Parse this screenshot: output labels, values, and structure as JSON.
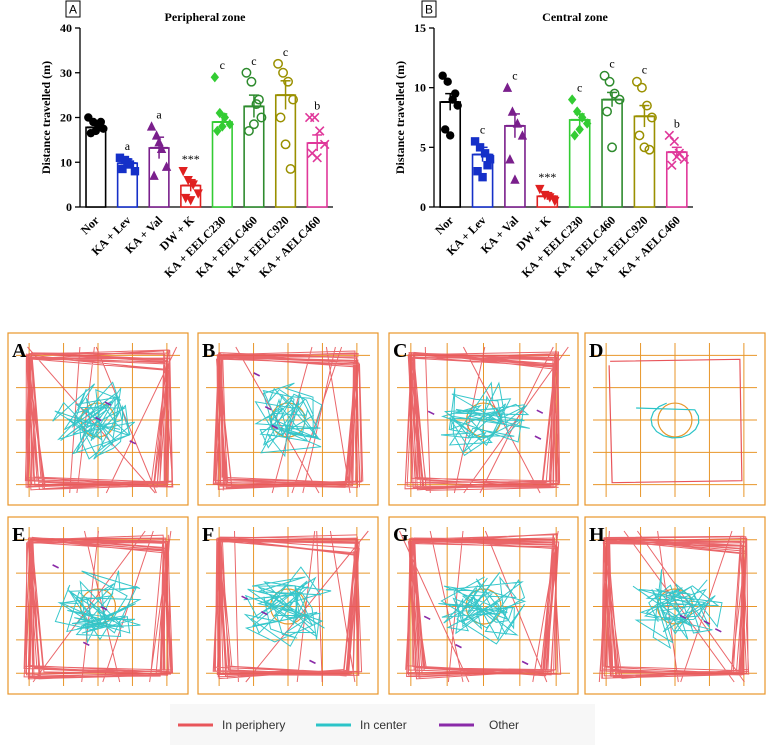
{
  "chart_data": [
    {
      "panel_label": "A",
      "type": "bar",
      "title": "Peripheral zone",
      "ylabel": "Distance travelled (m)",
      "xlabel": "",
      "ylim": [
        0,
        40
      ],
      "yticks": [
        "0",
        "10",
        "20",
        "30",
        "40"
      ],
      "categories": [
        "Nor",
        "KA + Lev",
        "KA + Val",
        "DW + K",
        "KA + EELC230",
        "KA + EELC460",
        "KA + EELC920",
        "KA + AELC460"
      ],
      "values": [
        17.8,
        9.8,
        13.2,
        4.8,
        19.0,
        22.5,
        25.0,
        14.3
      ],
      "errors": [
        1.0,
        0.9,
        2.4,
        1.3,
        1.8,
        2.5,
        3.2,
        1.8
      ],
      "points": [
        [
          20,
          19,
          18,
          17.5,
          16.5,
          17,
          19
        ],
        [
          11,
          10.5,
          9.5,
          8,
          8.5,
          10
        ],
        [
          18,
          16,
          13,
          9,
          7,
          14.5
        ],
        [
          8,
          6,
          5,
          3,
          2,
          1.5
        ],
        [
          29,
          21,
          20,
          18.5,
          17,
          18
        ],
        [
          30,
          28,
          23,
          20,
          17,
          18.5,
          24
        ],
        [
          32,
          30,
          28,
          24,
          20,
          14,
          8.5
        ],
        [
          20,
          20,
          17,
          14,
          12,
          11
        ]
      ],
      "significance": [
        "",
        "a",
        "a",
        "***",
        "c",
        "c",
        "c",
        "b"
      ],
      "colors": [
        "#000000",
        "#1530c8",
        "#7a1f8c",
        "#e02020",
        "#33cc33",
        "#2e8b2e",
        "#9a9000",
        "#e0389a"
      ],
      "markers": [
        "circle",
        "square",
        "triangle",
        "triangle-down",
        "diamond",
        "circle-open",
        "circle-open",
        "x"
      ]
    },
    {
      "panel_label": "B",
      "type": "bar",
      "title": "Central zone",
      "ylabel": "Distance travelled (m)",
      "xlabel": "",
      "ylim": [
        0,
        15
      ],
      "yticks": [
        "0",
        "5",
        "10",
        "15"
      ],
      "categories": [
        "Nor",
        "KA + Lev",
        "KA + Val",
        "DW + K",
        "KA + EELC230",
        "KA + EELC460",
        "KA + EELC920",
        "KA + AELC460"
      ],
      "values": [
        8.8,
        4.4,
        6.8,
        0.9,
        7.3,
        9.0,
        7.6,
        4.6
      ],
      "errors": [
        0.7,
        0.6,
        1.0,
        0.3,
        0.5,
        0.6,
        0.9,
        0.4
      ],
      "points": [
        [
          11,
          10.5,
          9,
          8.5,
          6.5,
          6,
          9.5
        ],
        [
          5.5,
          5,
          4.5,
          4,
          3,
          2.5,
          3.5
        ],
        [
          10,
          8,
          7,
          6,
          4,
          2.3
        ],
        [
          1.5,
          1,
          0.8,
          0.5
        ],
        [
          9,
          8,
          7.5,
          7,
          6,
          6.5
        ],
        [
          11,
          10.5,
          9.5,
          9,
          8,
          5
        ],
        [
          10.5,
          10,
          8.5,
          7.5,
          6,
          5,
          4.8
        ],
        [
          6,
          5.5,
          4.5,
          4,
          3.5,
          4.2
        ]
      ],
      "significance": [
        "",
        "c",
        "c",
        "***",
        "c",
        "c",
        "c",
        "b"
      ],
      "colors": [
        "#000000",
        "#1530c8",
        "#7a1f8c",
        "#e02020",
        "#33cc33",
        "#2e8b2e",
        "#9a9000",
        "#e0389a"
      ],
      "markers": [
        "circle",
        "square",
        "triangle",
        "triangle-down",
        "diamond",
        "circle-open",
        "circle-open",
        "x"
      ]
    }
  ],
  "track_panels": [
    "A",
    "B",
    "C",
    "D",
    "E",
    "F",
    "G",
    "H"
  ],
  "legend": [
    {
      "label": "In periphery",
      "color": "#e8555a"
    },
    {
      "label": "In center",
      "color": "#2cc4c8"
    },
    {
      "label": "Other",
      "color": "#8a2aa8"
    }
  ],
  "colors": {
    "grid": "#e8962a",
    "periphery": "#e8555a",
    "center": "#2cc4c8",
    "other": "#8a2aa8"
  }
}
